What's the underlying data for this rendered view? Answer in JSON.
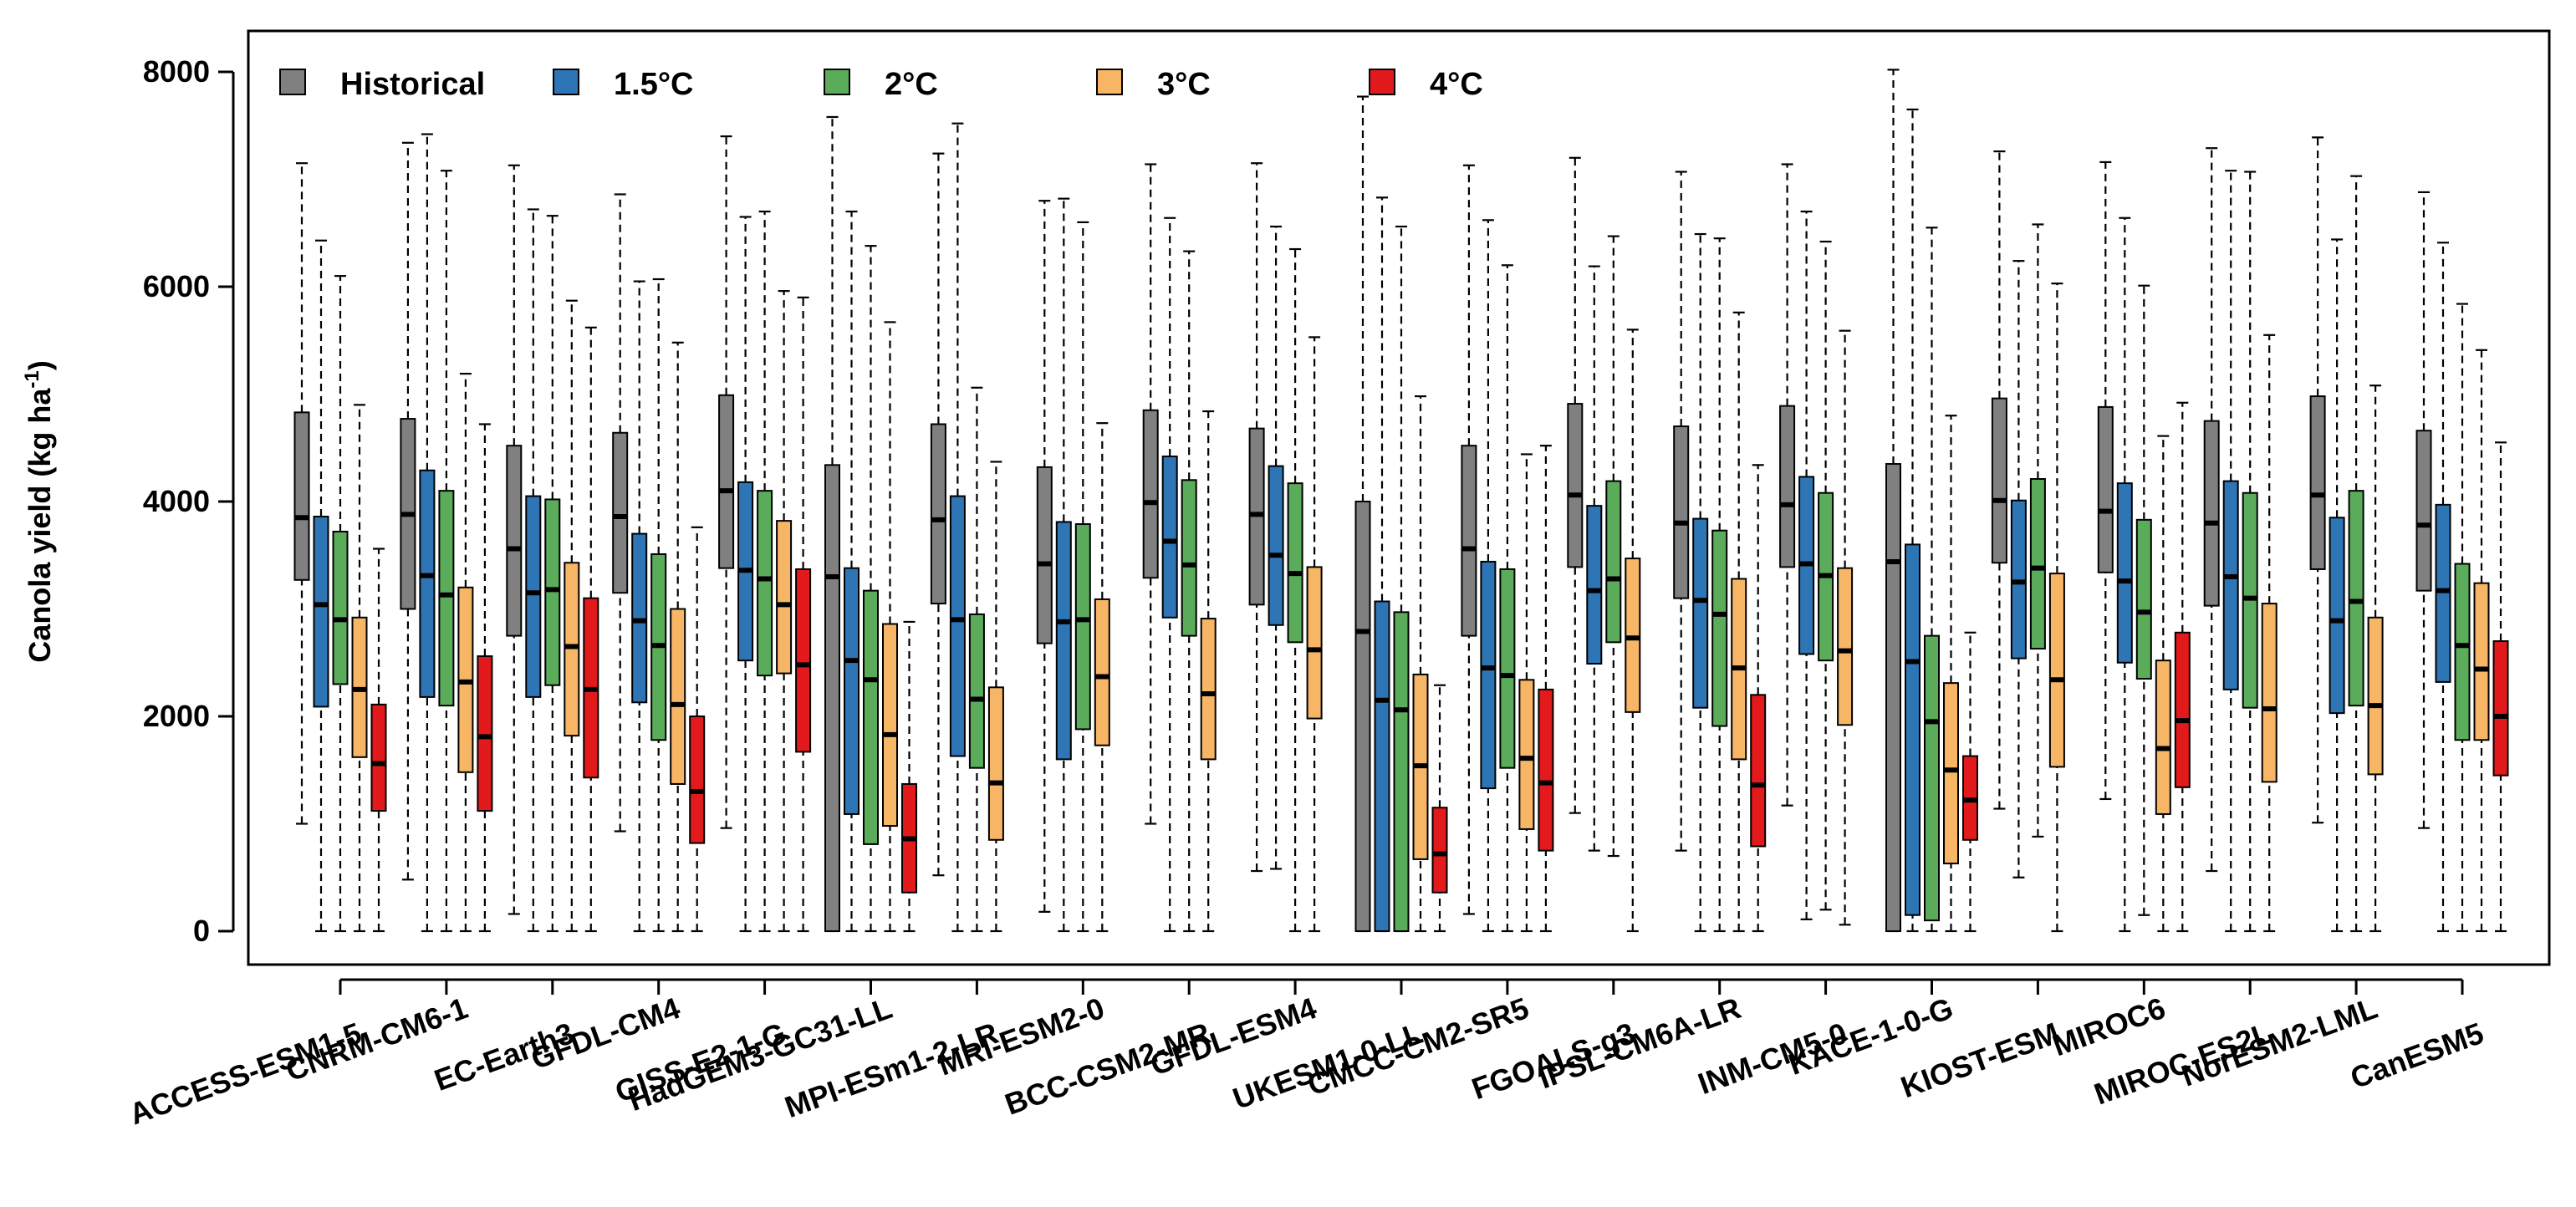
{
  "chart_data": {
    "type": "boxplot",
    "ylabel_main": "Canola yield (kg ha",
    "ylabel_sup": "-1",
    "ylabel_close": ")",
    "ylim": [
      0,
      8000
    ],
    "yticks": [
      "0",
      "2000",
      "4000",
      "6000",
      "8000"
    ],
    "colors": {
      "Historical": "#808080",
      "1.5°C": "#2e75b6",
      "2°C": "#5aac5a",
      "3°C": "#f7b566",
      "4°C": "#e31a1c"
    },
    "legend": [
      "Historical",
      "1.5°C",
      "2°C",
      "3°C",
      "4°C"
    ],
    "models": [
      {
        "name": "ACCESS-ESM1-5",
        "stats": [
          [
            1000,
            3270,
            3850,
            4830,
            7150
          ],
          [
            0,
            2090,
            3040,
            3860,
            6430
          ],
          [
            0,
            2300,
            2900,
            3720,
            6100
          ],
          [
            0,
            1620,
            2250,
            2920,
            4900
          ],
          [
            0,
            1120,
            1560,
            2110,
            3560
          ]
        ]
      },
      {
        "name": "CNRM-CM6-1",
        "stats": [
          [
            480,
            3000,
            3880,
            4770,
            7340
          ],
          [
            0,
            2180,
            3310,
            4290,
            7420
          ],
          [
            0,
            2100,
            3130,
            4100,
            7080
          ],
          [
            0,
            1480,
            2320,
            3200,
            5190
          ],
          [
            0,
            1120,
            1810,
            2560,
            4720
          ]
        ]
      },
      {
        "name": "EC-Earth3",
        "stats": [
          [
            160,
            2750,
            3560,
            4520,
            7130
          ],
          [
            0,
            2180,
            3150,
            4050,
            6720
          ],
          [
            0,
            2290,
            3180,
            4020,
            6660
          ],
          [
            0,
            1820,
            2650,
            3430,
            5870
          ],
          [
            0,
            1430,
            2250,
            3100,
            5620
          ]
        ]
      },
      {
        "name": "GFDL-CM4",
        "stats": [
          [
            930,
            3150,
            3860,
            4640,
            6860
          ],
          [
            0,
            2130,
            2890,
            3700,
            6050
          ],
          [
            0,
            1780,
            2660,
            3510,
            6070
          ],
          [
            0,
            1370,
            2110,
            3000,
            5480
          ],
          [
            0,
            820,
            1300,
            2000,
            3760
          ]
        ]
      },
      {
        "name": "GISS-E2-1-G",
        "stats": [
          [
            960,
            3380,
            4100,
            4990,
            7400
          ],
          [
            0,
            2520,
            3360,
            4180,
            6650
          ],
          [
            0,
            2380,
            3280,
            4100,
            6700
          ],
          [
            0,
            2400,
            3040,
            3820,
            5960
          ],
          [
            0,
            1670,
            2480,
            3370,
            5900
          ]
        ]
      },
      {
        "name": "HadGEM3-GC31-LL",
        "stats": [
          [
            0,
            0,
            3300,
            4340,
            7580
          ],
          [
            0,
            1090,
            2520,
            3380,
            6700
          ],
          [
            0,
            810,
            2340,
            3170,
            6380
          ],
          [
            0,
            980,
            1830,
            2860,
            5670
          ],
          [
            0,
            360,
            860,
            1370,
            2880
          ]
        ]
      },
      {
        "name": "MPI-ESm1-2-LR",
        "stats": [
          [
            520,
            3050,
            3830,
            4720,
            7240
          ],
          [
            0,
            1630,
            2900,
            4050,
            7520
          ],
          [
            0,
            1520,
            2160,
            2950,
            5060
          ],
          [
            0,
            850,
            1380,
            2270,
            4370
          ],
          null
        ]
      },
      {
        "name": "MRI-ESM2-0",
        "stats": [
          [
            180,
            2680,
            3420,
            4320,
            6800
          ],
          [
            0,
            1600,
            2880,
            3810,
            6820
          ],
          [
            0,
            1880,
            2900,
            3790,
            6600
          ],
          [
            0,
            1730,
            2370,
            3090,
            4730
          ],
          null
        ]
      },
      {
        "name": "BCC-CSM2-MR",
        "stats": [
          [
            1000,
            3290,
            3990,
            4850,
            7140
          ],
          [
            0,
            2920,
            3630,
            4420,
            6640
          ],
          [
            0,
            2750,
            3410,
            4200,
            6330
          ],
          [
            0,
            1600,
            2210,
            2910,
            4840
          ],
          null
        ]
      },
      {
        "name": "GFDL-ESM4",
        "stats": [
          [
            560,
            3040,
            3880,
            4680,
            7150
          ],
          [
            580,
            2850,
            3500,
            4330,
            6560
          ],
          [
            0,
            2690,
            3330,
            4170,
            6350
          ],
          [
            0,
            1980,
            2620,
            3390,
            5530
          ],
          null
        ]
      },
      {
        "name": "UKESM1-0-LL",
        "stats": [
          [
            0,
            0,
            2790,
            4000,
            7770
          ],
          [
            0,
            0,
            2150,
            3070,
            6830
          ],
          [
            0,
            0,
            2060,
            2970,
            6560
          ],
          [
            0,
            670,
            1540,
            2390,
            4980
          ],
          [
            0,
            360,
            720,
            1150,
            2290
          ]
        ]
      },
      {
        "name": "CMCC-CM2-SR5",
        "stats": [
          [
            160,
            2750,
            3560,
            4520,
            7130
          ],
          [
            0,
            1330,
            2450,
            3440,
            6620
          ],
          [
            0,
            1520,
            2380,
            3370,
            6200
          ],
          [
            0,
            950,
            1610,
            2340,
            4440
          ],
          [
            0,
            750,
            1380,
            2250,
            4520
          ]
        ]
      },
      {
        "name": "FGOALS-g3",
        "stats": [
          [
            1100,
            3390,
            4060,
            4910,
            7200
          ],
          [
            750,
            2490,
            3170,
            3960,
            6190
          ],
          [
            700,
            2690,
            3280,
            4190,
            6470
          ],
          [
            0,
            2040,
            2730,
            3470,
            5600
          ],
          null
        ]
      },
      {
        "name": "IPSL-CM6A-LR",
        "stats": [
          [
            750,
            3100,
            3800,
            4700,
            7070
          ],
          [
            0,
            2080,
            3080,
            3840,
            6490
          ],
          [
            0,
            1910,
            2950,
            3730,
            6450
          ],
          [
            0,
            1600,
            2450,
            3280,
            5760
          ],
          [
            0,
            790,
            1360,
            2200,
            4340
          ]
        ]
      },
      {
        "name": "INM-CM5-0",
        "stats": [
          [
            1170,
            3390,
            3970,
            4890,
            7140
          ],
          [
            110,
            2580,
            3420,
            4230,
            6700
          ],
          [
            200,
            2520,
            3310,
            4080,
            6420
          ],
          [
            60,
            1920,
            2610,
            3380,
            5590
          ],
          null
        ]
      },
      {
        "name": "KACE-1-0-G",
        "stats": [
          [
            0,
            0,
            3440,
            4350,
            8020
          ],
          [
            0,
            150,
            2510,
            3600,
            7650
          ],
          [
            0,
            100,
            1950,
            2750,
            6550
          ],
          [
            0,
            630,
            1500,
            2310,
            4800
          ],
          [
            0,
            850,
            1220,
            1630,
            2780
          ]
        ]
      },
      {
        "name": "KIOST-ESM",
        "stats": [
          [
            1140,
            3430,
            4010,
            4960,
            7260
          ],
          [
            500,
            2540,
            3250,
            4010,
            6240
          ],
          [
            880,
            2630,
            3380,
            4210,
            6580
          ],
          [
            0,
            1530,
            2340,
            3330,
            6030
          ],
          null
        ]
      },
      {
        "name": "MIROC6",
        "stats": [
          [
            1230,
            3340,
            3910,
            4880,
            7160
          ],
          [
            0,
            2500,
            3260,
            4170,
            6640
          ],
          [
            150,
            2350,
            2970,
            3830,
            6010
          ],
          [
            0,
            1090,
            1700,
            2520,
            4610
          ],
          [
            0,
            1340,
            1960,
            2780,
            4920
          ]
        ]
      },
      {
        "name": "MIROC-ES2L",
        "stats": [
          [
            560,
            3030,
            3800,
            4750,
            7290
          ],
          [
            0,
            2250,
            3300,
            4190,
            7080
          ],
          [
            0,
            2080,
            3100,
            4080,
            7070
          ],
          [
            0,
            1390,
            2070,
            3050,
            5550
          ],
          null
        ]
      },
      {
        "name": "NorESM2-LML",
        "stats": [
          [
            1010,
            3370,
            4060,
            4980,
            7390
          ],
          [
            0,
            2030,
            2890,
            3850,
            6440
          ],
          [
            0,
            2100,
            3070,
            4100,
            7030
          ],
          [
            0,
            1460,
            2100,
            2920,
            5080
          ],
          null
        ]
      },
      {
        "name": "CanESM5",
        "stats": [
          [
            960,
            3170,
            3780,
            4660,
            6880
          ],
          [
            0,
            2320,
            3170,
            3970,
            6410
          ],
          [
            0,
            1780,
            2660,
            3420,
            5840
          ],
          [
            0,
            1780,
            2440,
            3240,
            5410
          ],
          [
            0,
            1450,
            2000,
            2700,
            4550
          ]
        ]
      }
    ]
  }
}
